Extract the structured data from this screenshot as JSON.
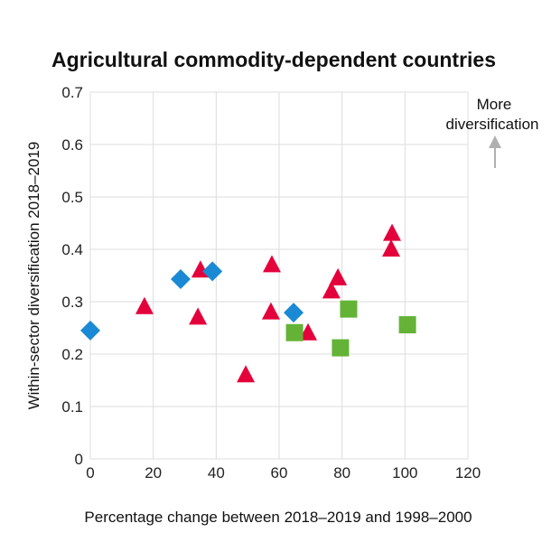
{
  "chart_data": {
    "type": "scatter",
    "title": "Agricultural commodity-dependent countries",
    "xlabel": "Percentage change between 2018–2019 and 1998–2000",
    "ylabel": "Within-sector diversification 2018–2019",
    "xlim": [
      0,
      120
    ],
    "ylim": [
      0,
      0.7
    ],
    "x_ticks": [
      "0",
      "20",
      "40",
      "60",
      "80",
      "100",
      "120"
    ],
    "y_ticks": [
      "0",
      "0.1",
      "0.2",
      "0.3",
      "0.4",
      "0.5",
      "0.6",
      "0.7"
    ],
    "grid": true,
    "annotation": {
      "line1": "More",
      "line2": "diversification",
      "arrow": "up",
      "arrow_color": "#b0b0b0"
    },
    "series": [
      {
        "marker": "triangle",
        "color": "#e4003b",
        "points": [
          [
            17.2,
            0.29
          ],
          [
            35.0,
            0.36
          ],
          [
            34.2,
            0.27
          ],
          [
            49.4,
            0.16
          ],
          [
            57.7,
            0.37
          ],
          [
            57.4,
            0.28
          ],
          [
            69.2,
            0.24
          ],
          [
            76.6,
            0.32
          ],
          [
            78.7,
            0.345
          ],
          [
            95.9,
            0.43
          ],
          [
            95.6,
            0.4
          ]
        ]
      },
      {
        "marker": "diamond",
        "color": "#1a8ad4",
        "points": [
          [
            0,
            0.245
          ],
          [
            28.7,
            0.343
          ],
          [
            38.8,
            0.358
          ],
          [
            64.6,
            0.279
          ]
        ]
      },
      {
        "marker": "square",
        "color": "#64b337",
        "points": [
          [
            64.9,
            0.241
          ],
          [
            82.1,
            0.286
          ],
          [
            79.5,
            0.212
          ],
          [
            100.8,
            0.256
          ]
        ]
      }
    ]
  }
}
